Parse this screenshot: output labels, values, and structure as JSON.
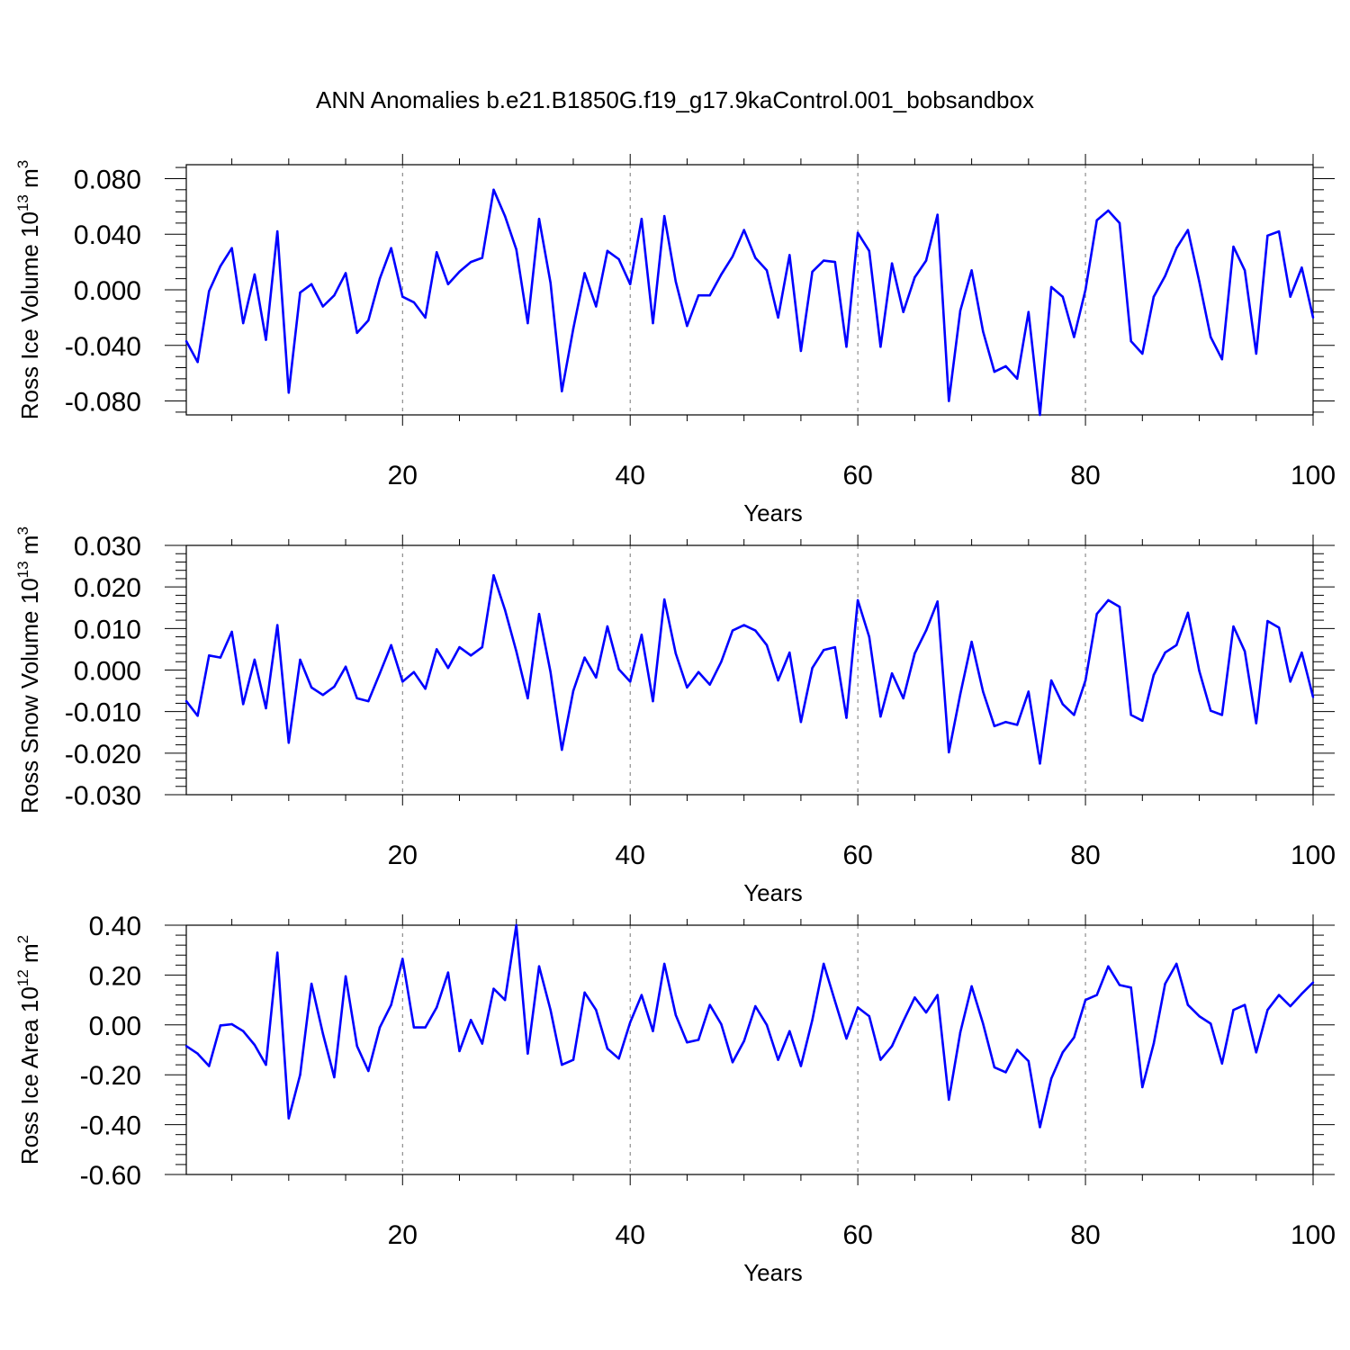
{
  "title": "ANN Anomalies b.e21.B1850G.f19_g17.9kaControl.001_bobsandbox",
  "chart_data": [
    {
      "type": "line",
      "xlabel": "Years",
      "ylabel": {
        "text": "Ross Ice Volume 10",
        "exp": "13",
        "unit": " m",
        "unit_exp": "3"
      },
      "xlim": [
        1,
        100
      ],
      "ylim": [
        -0.09,
        0.09
      ],
      "xticks": [
        "20",
        "40",
        "60",
        "80",
        "100"
      ],
      "yticks": [
        "0.080",
        "0.040",
        "0.000",
        "-0.040",
        "-0.080"
      ],
      "color": "#0000ff",
      "x_start": 1,
      "values": [
        -0.037,
        -0.052,
        -0.001,
        0.017,
        0.03,
        -0.024,
        0.011,
        -0.036,
        0.042,
        -0.074,
        -0.002,
        0.004,
        -0.012,
        -0.004,
        0.012,
        -0.031,
        -0.022,
        0.008,
        0.03,
        -0.005,
        -0.009,
        -0.02,
        0.027,
        0.004,
        0.013,
        0.02,
        0.023,
        0.072,
        0.053,
        0.029,
        -0.024,
        0.051,
        0.005,
        -0.073,
        -0.028,
        0.012,
        -0.012,
        0.028,
        0.022,
        0.004,
        0.051,
        -0.024,
        0.053,
        0.006,
        -0.026,
        -0.004,
        -0.004,
        0.011,
        0.024,
        0.043,
        0.023,
        0.014,
        -0.02,
        0.025,
        -0.044,
        0.013,
        0.021,
        0.02,
        -0.041,
        0.041,
        0.028,
        -0.041,
        0.019,
        -0.016,
        0.009,
        0.021,
        0.054,
        -0.08,
        -0.015,
        0.014,
        -0.03,
        -0.059,
        -0.055,
        -0.064,
        -0.016,
        -0.09,
        0.002,
        -0.005,
        -0.034,
        0.0,
        0.05,
        0.057,
        0.048,
        -0.037,
        -0.046,
        -0.005,
        0.01,
        0.03,
        0.043,
        0.006,
        -0.034,
        -0.05,
        0.031,
        0.014,
        -0.046,
        0.039,
        0.042,
        -0.005,
        0.016,
        -0.02
      ]
    },
    {
      "type": "line",
      "xlabel": "Years",
      "ylabel": {
        "text": "Ross Snow Volume 10",
        "exp": "13",
        "unit": " m",
        "unit_exp": "3"
      },
      "xlim": [
        1,
        100
      ],
      "ylim": [
        -0.03,
        0.03
      ],
      "xticks": [
        "20",
        "40",
        "60",
        "80",
        "100"
      ],
      "yticks": [
        "0.030",
        "0.020",
        "0.010",
        "0.000",
        "-0.010",
        "-0.020",
        "-0.030"
      ],
      "color": "#0000ff",
      "x_start": 1,
      "values": [
        -0.0075,
        -0.011,
        0.0035,
        0.003,
        0.0092,
        -0.0082,
        0.0025,
        -0.0092,
        0.0108,
        -0.0175,
        0.0025,
        -0.0042,
        -0.006,
        -0.004,
        0.0008,
        -0.0068,
        -0.0075,
        -0.0008,
        0.006,
        -0.0028,
        -0.0005,
        -0.0045,
        0.005,
        0.0005,
        0.0055,
        0.0035,
        0.0055,
        0.0228,
        0.0145,
        0.0045,
        -0.0068,
        0.0135,
        -0.0005,
        -0.0192,
        -0.005,
        0.003,
        -0.0018,
        0.0105,
        0.0002,
        -0.0028,
        0.0085,
        -0.0075,
        0.017,
        0.004,
        -0.0042,
        -0.0005,
        -0.0035,
        0.002,
        0.0095,
        0.0108,
        0.0095,
        0.006,
        -0.0025,
        0.0042,
        -0.0125,
        0.0005,
        0.0048,
        0.0055,
        -0.0115,
        0.0168,
        0.008,
        -0.0112,
        -0.0008,
        -0.0068,
        0.004,
        0.0095,
        0.0165,
        -0.0198,
        -0.0058,
        0.0068,
        -0.0052,
        -0.0135,
        -0.0125,
        -0.0132,
        -0.0052,
        -0.0225,
        -0.0025,
        -0.0082,
        -0.0108,
        -0.0025,
        0.0135,
        0.0168,
        0.0152,
        -0.0108,
        -0.0122,
        -0.0012,
        0.0042,
        0.006,
        0.0138,
        -0.0002,
        -0.0098,
        -0.0108,
        0.0105,
        0.0045,
        -0.0128,
        0.0118,
        0.0102,
        -0.0028,
        0.0042,
        -0.0065
      ]
    },
    {
      "type": "line",
      "xlabel": "Years",
      "ylabel": {
        "text": "Ross Ice Area 10",
        "exp": "12",
        "unit": " m",
        "unit_exp": "2"
      },
      "xlim": [
        1,
        100
      ],
      "ylim": [
        -0.6,
        0.4
      ],
      "xticks": [
        "20",
        "40",
        "60",
        "80",
        "100"
      ],
      "yticks": [
        "0.40",
        "0.20",
        "0.00",
        "-0.20",
        "-0.40",
        "-0.60"
      ],
      "color": "#0000ff",
      "x_start": 1,
      "values": [
        -0.085,
        -0.115,
        -0.165,
        -0.002,
        0.003,
        -0.025,
        -0.08,
        -0.16,
        0.29,
        -0.375,
        -0.2,
        0.165,
        -0.035,
        -0.21,
        0.195,
        -0.085,
        -0.185,
        -0.01,
        0.08,
        0.265,
        -0.01,
        -0.01,
        0.07,
        0.21,
        -0.105,
        0.02,
        -0.075,
        0.145,
        0.1,
        0.4,
        -0.115,
        0.235,
        0.06,
        -0.16,
        -0.14,
        0.13,
        0.06,
        -0.095,
        -0.135,
        0.01,
        0.12,
        -0.025,
        0.245,
        0.04,
        -0.07,
        -0.06,
        0.08,
        0.003,
        -0.15,
        -0.065,
        0.075,
        0.0,
        -0.14,
        -0.025,
        -0.165,
        0.02,
        0.245,
        0.095,
        -0.055,
        0.07,
        0.035,
        -0.14,
        -0.085,
        0.015,
        0.11,
        0.05,
        0.12,
        -0.3,
        -0.03,
        0.155,
        0.005,
        -0.17,
        -0.19,
        -0.1,
        -0.145,
        -0.41,
        -0.215,
        -0.11,
        -0.05,
        0.1,
        0.12,
        0.235,
        0.16,
        0.15,
        -0.25,
        -0.075,
        0.165,
        0.245,
        0.08,
        0.035,
        0.005,
        -0.155,
        0.06,
        0.08,
        -0.11,
        0.06,
        0.12,
        0.075,
        0.125,
        0.17
      ]
    }
  ]
}
